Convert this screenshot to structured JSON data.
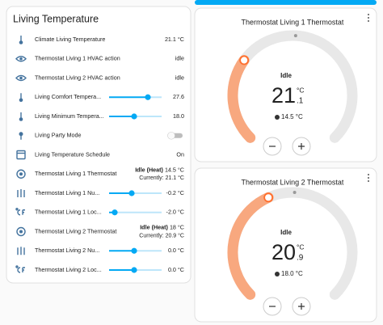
{
  "left_card": {
    "title": "Living Temperature",
    "rows": [
      {
        "name": "Climate Living Temperature",
        "state": "21.1 °C"
      },
      {
        "name": "Thermostat Living 1 HVAC action",
        "state": "idle"
      },
      {
        "name": "Thermostat Living 2 HVAC action",
        "state": "idle"
      },
      {
        "name": "Living Comfort Tempera...",
        "state": "27.6"
      },
      {
        "name": "Living Minimum Tempera...",
        "state": "18.0"
      },
      {
        "name": "Living Party Mode"
      },
      {
        "name": "Living Temperature Schedule",
        "state": "On"
      },
      {
        "name": "Thermostat Living 1 Thermostat",
        "state_action": "Idle (Heat)",
        "state_target": "14.5 °C",
        "state_current": "Currently: 21.1 °C"
      },
      {
        "name": "Thermostat Living 1 Nu...",
        "state": "-0.2 °C"
      },
      {
        "name": "Thermostat Living 1 Loc...",
        "state": "-2.0 °C"
      },
      {
        "name": "Thermostat Living 2 Thermostat",
        "state_action": "Idle (Heat)",
        "state_target": "18 °C",
        "state_current": "Currently: 20.9 °C"
      },
      {
        "name": "Thermostat Living 2 Nu...",
        "state": "0.0 °C"
      },
      {
        "name": "Thermostat Living 2 Loc...",
        "state": "0.0 °C"
      }
    ]
  },
  "thermostats": [
    {
      "title": "Thermostat Living 1 Thermostat",
      "action": "Idle",
      "temperature_integer": "21",
      "temperature_decimal": ".1",
      "unit": "°C",
      "target": "14.5 °C"
    },
    {
      "title": "Thermostat Living 2 Thermostat",
      "action": "Idle",
      "temperature_integer": "20",
      "temperature_decimal": ".9",
      "unit": "°C",
      "target": "18.0 °C"
    }
  ]
}
